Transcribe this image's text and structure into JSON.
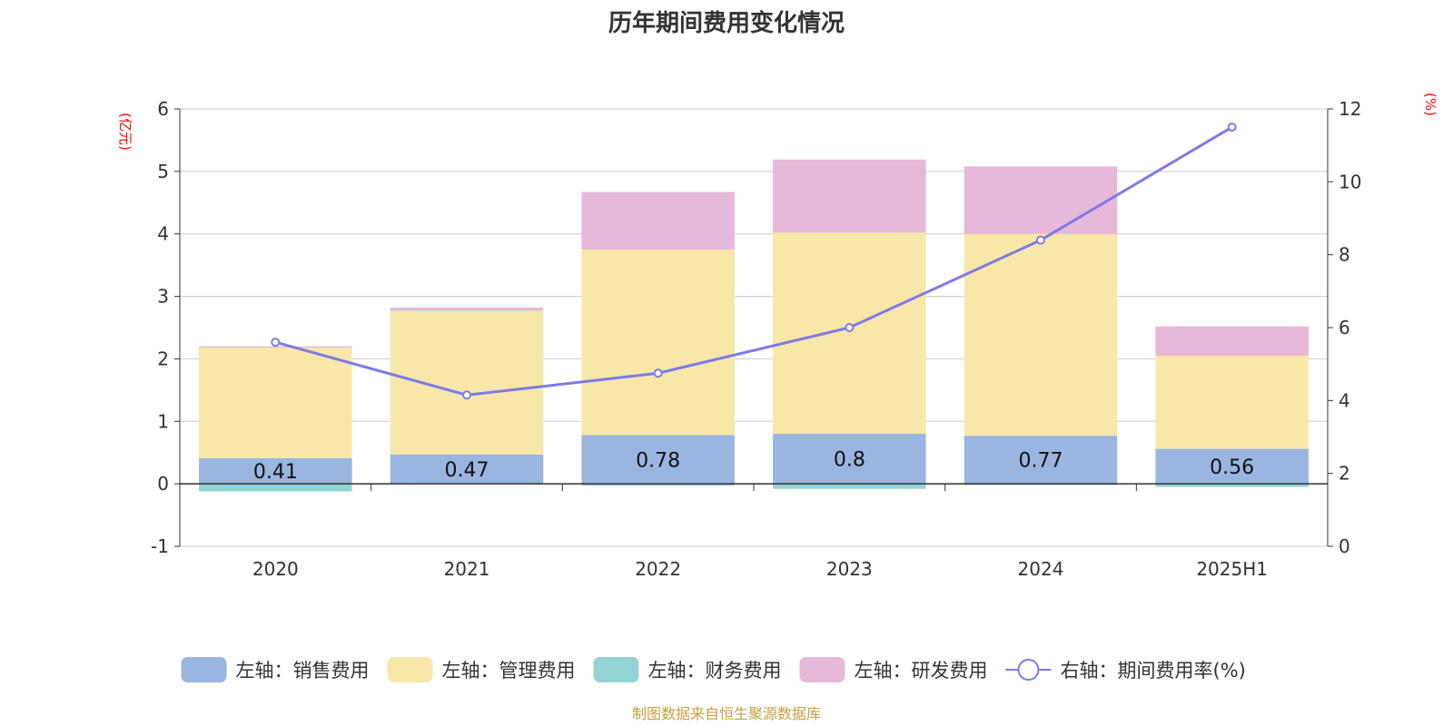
{
  "chart_data": {
    "type": "bar",
    "title": "历年期间费用变化情况",
    "categories": [
      "2020",
      "2021",
      "2022",
      "2023",
      "2024",
      "2025H1"
    ],
    "left_axis": {
      "unit": "(亿元)",
      "ylim": [
        -1,
        6
      ],
      "ticks": [
        -1,
        0,
        1,
        2,
        3,
        4,
        5,
        6
      ]
    },
    "right_axis": {
      "unit": "(%)",
      "ylim": [
        0,
        12
      ],
      "ticks": [
        0,
        2,
        4,
        6,
        8,
        10,
        12
      ]
    },
    "series": [
      {
        "name": "左轴：销售费用",
        "type": "bar",
        "axis": "left",
        "color": "#9ab5e0",
        "values": [
          0.41,
          0.47,
          0.78,
          0.8,
          0.77,
          0.56
        ],
        "labels": [
          "0.41",
          "0.47",
          "0.78",
          "0.8",
          "0.77",
          "0.56"
        ]
      },
      {
        "name": "左轴：管理费用",
        "type": "bar",
        "axis": "left",
        "color": "#f7e7a8",
        "values": [
          1.77,
          2.3,
          2.97,
          3.22,
          3.23,
          1.49
        ]
      },
      {
        "name": "左轴：财务费用",
        "type": "bar",
        "axis": "left",
        "color": "#94d3d4",
        "values": [
          -0.12,
          0.01,
          -0.03,
          -0.08,
          -0.02,
          -0.05
        ]
      },
      {
        "name": "左轴：研发费用",
        "type": "bar",
        "axis": "left",
        "color": "#e7b8d8",
        "values": [
          0.02,
          0.04,
          0.92,
          1.17,
          1.08,
          0.47
        ]
      },
      {
        "name": "右轴：期间费用率(%)",
        "type": "line",
        "axis": "right",
        "color": "#7b7be8",
        "values": [
          5.6,
          4.15,
          4.75,
          6.0,
          8.4,
          11.5
        ]
      }
    ],
    "legend_position": "bottom",
    "grid": true
  },
  "source_note": "制图数据来自恒生聚源数据库"
}
